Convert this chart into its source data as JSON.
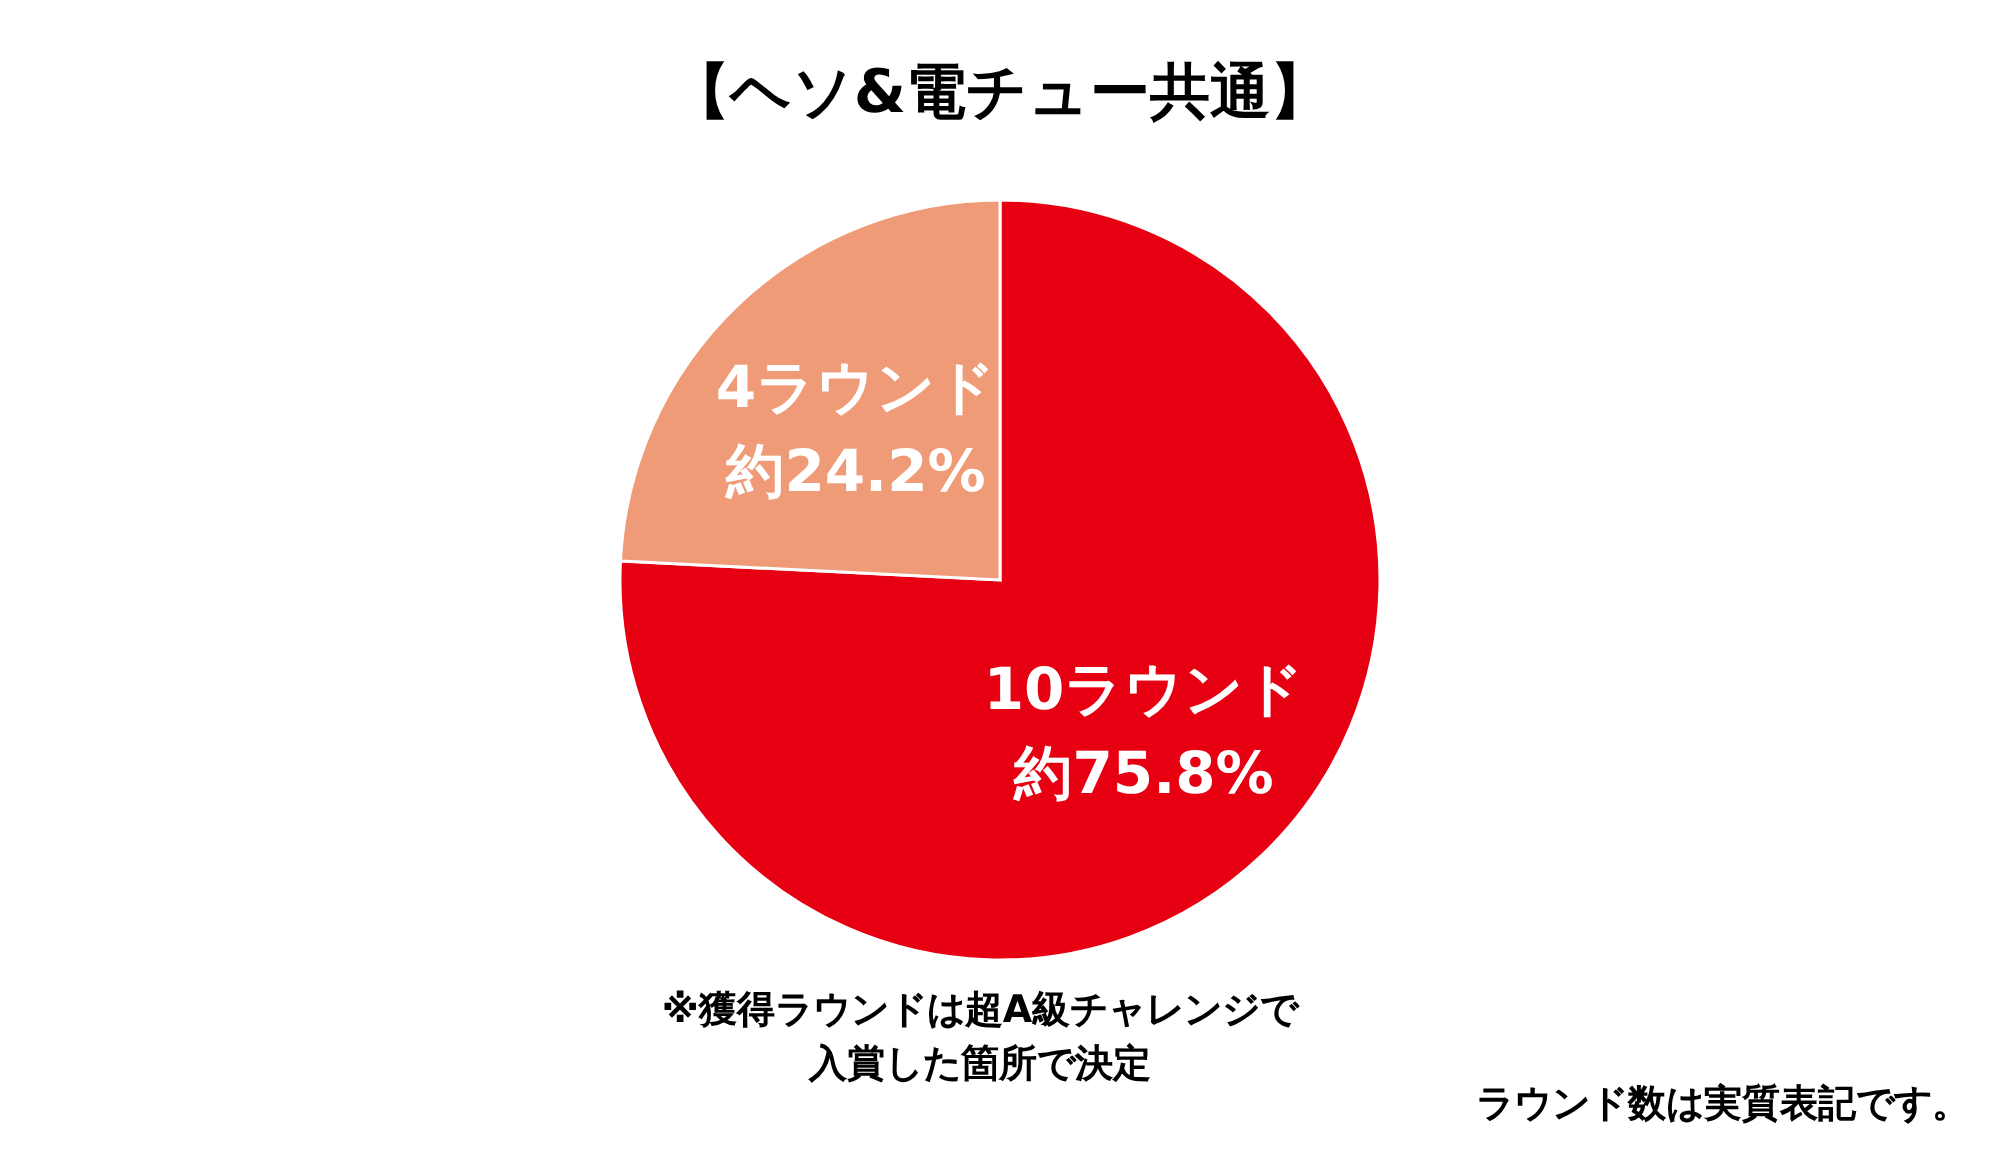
{
  "chart_data": {
    "type": "pie",
    "title": "【ヘソ&電チュー共通】",
    "categories": [
      "10ラウンド",
      "4ラウンド"
    ],
    "values": [
      75.8,
      24.2
    ],
    "colors": [
      "#e60012",
      "#f09b77"
    ],
    "value_labels": [
      "約75.8%",
      "約24.2%"
    ],
    "annotations": [
      "※獲得ラウンドは超A級チャレンジで",
      "入賞した箇所で決定",
      "ラウンド数は実質表記です。"
    ]
  }
}
